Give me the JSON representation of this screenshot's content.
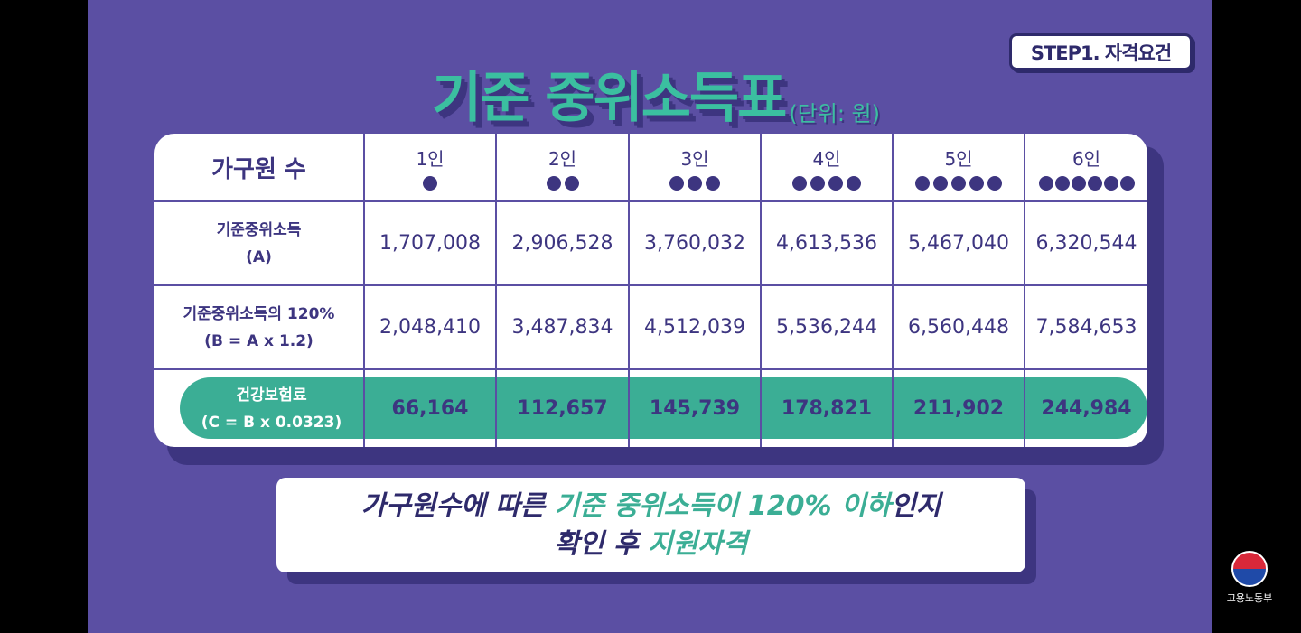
{
  "step_badge": "STEP1. 자격요건",
  "title": {
    "main": "기준 중위소득표",
    "unit": "(단위: 원)"
  },
  "table": {
    "header_label": "가구원 수",
    "columns": [
      "1인",
      "2인",
      "3인",
      "4인",
      "5인",
      "6인"
    ],
    "column_dot_counts": [
      1,
      2,
      3,
      4,
      5,
      6
    ],
    "rows": [
      {
        "label_line1": "기준중위소득",
        "label_line2": "(A)",
        "values": [
          "1,707,008",
          "2,906,528",
          "3,760,032",
          "4,613,536",
          "5,467,040",
          "6,320,544"
        ]
      },
      {
        "label_line1": "기준중위소득의 120%",
        "label_line2": "(B = A x 1.2)",
        "values": [
          "2,048,410",
          "3,487,834",
          "4,512,039",
          "5,536,244",
          "6,560,448",
          "7,584,653"
        ]
      },
      {
        "label_line1": "건강보험료",
        "label_line2": "(C = B x 0.0323)",
        "values": [
          "66,164",
          "112,657",
          "145,739",
          "178,821",
          "211,902",
          "244,984"
        ]
      }
    ]
  },
  "caption": {
    "line1_a": "가구원수에 따른 ",
    "line1_b": "기준 중위소득이 120% 이하",
    "line1_c": "인지",
    "line2_a": "확인 후 ",
    "line2_b": "지원자격"
  },
  "logo": {
    "text": "고용노동부"
  },
  "colors": {
    "background": "#5b4fa3",
    "accent": "#3bae95",
    "text_dark": "#3d3580"
  }
}
